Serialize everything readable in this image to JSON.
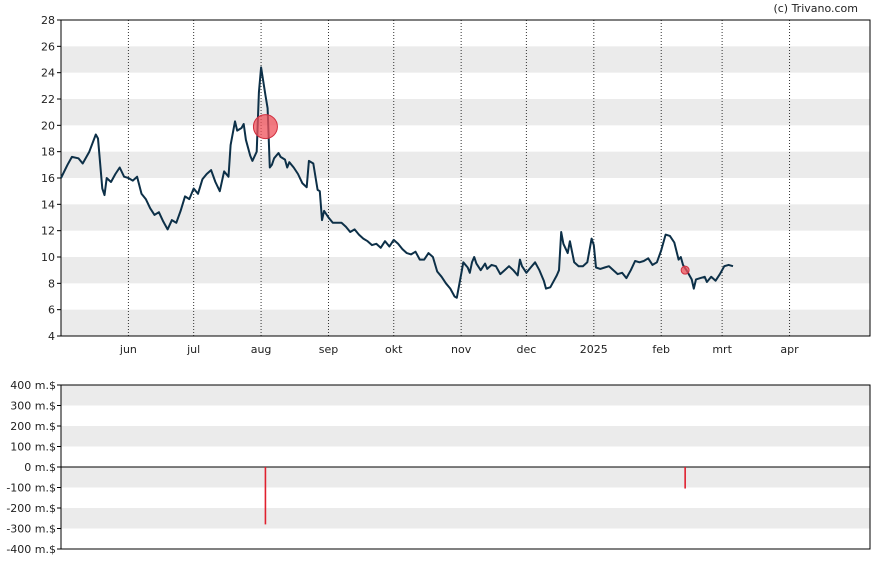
{
  "watermark": "(c) Trivano.com",
  "colors": {
    "band": "#ebebeb",
    "price_line": "#0d3048",
    "marker": "#f0505a",
    "bar": "#e0202e",
    "grid_dots": "#333333",
    "axis": "#000000"
  },
  "chart_data": [
    {
      "type": "line",
      "title": "",
      "xlabel": "",
      "ylabel": "",
      "ylim": [
        4,
        28
      ],
      "y_ticks": [
        "4",
        "6",
        "8",
        "10",
        "12",
        "14",
        "16",
        "18",
        "20",
        "22",
        "24",
        "26",
        "28"
      ],
      "x_ticks": [
        {
          "label": "jun",
          "d": 31
        },
        {
          "label": "jul",
          "d": 61
        },
        {
          "label": "aug",
          "d": 92
        },
        {
          "label": "sep",
          "d": 123
        },
        {
          "label": "okt",
          "d": 153
        },
        {
          "label": "nov",
          "d": 184
        },
        {
          "label": "dec",
          "d": 214
        },
        {
          "label": "2025",
          "d": 245
        },
        {
          "label": "feb",
          "d": 276
        },
        {
          "label": "mrt",
          "d": 304
        },
        {
          "label": "apr",
          "d": 335
        }
      ],
      "xlim": [
        0,
        372
      ],
      "band_stripes": true,
      "series": [
        {
          "points": [
            [
              0,
              16.0
            ],
            [
              3,
              17.0
            ],
            [
              5,
              17.6
            ],
            [
              8,
              17.5
            ],
            [
              10,
              17.1
            ],
            [
              13,
              18.0
            ],
            [
              16,
              19.3
            ],
            [
              17,
              19.0
            ],
            [
              19,
              15.2
            ],
            [
              20,
              14.7
            ],
            [
              21,
              16.0
            ],
            [
              23,
              15.7
            ],
            [
              25,
              16.3
            ],
            [
              27,
              16.8
            ],
            [
              29,
              16.1
            ],
            [
              31,
              16.0
            ],
            [
              33,
              15.8
            ],
            [
              35,
              16.1
            ],
            [
              37,
              14.8
            ],
            [
              39,
              14.4
            ],
            [
              41,
              13.7
            ],
            [
              43,
              13.2
            ],
            [
              45,
              13.4
            ],
            [
              47,
              12.7
            ],
            [
              49,
              12.1
            ],
            [
              51,
              12.8
            ],
            [
              53,
              12.6
            ],
            [
              55,
              13.5
            ],
            [
              57,
              14.6
            ],
            [
              59,
              14.4
            ],
            [
              61,
              15.2
            ],
            [
              63,
              14.8
            ],
            [
              65,
              15.9
            ],
            [
              67,
              16.3
            ],
            [
              69,
              16.6
            ],
            [
              71,
              15.7
            ],
            [
              73,
              15.0
            ],
            [
              75,
              16.5
            ],
            [
              77,
              16.1
            ],
            [
              78,
              18.5
            ],
            [
              80,
              20.3
            ],
            [
              81,
              19.6
            ],
            [
              83,
              19.8
            ],
            [
              84,
              20.1
            ],
            [
              85,
              18.9
            ],
            [
              87,
              17.7
            ],
            [
              88,
              17.3
            ],
            [
              90,
              18.0
            ],
            [
              91,
              22.5
            ],
            [
              92,
              24.4
            ],
            [
              94,
              22.3
            ],
            [
              95,
              21.3
            ],
            [
              96,
              16.8
            ],
            [
              97,
              17.0
            ],
            [
              98,
              17.5
            ],
            [
              100,
              17.9
            ],
            [
              101,
              17.6
            ],
            [
              103,
              17.4
            ],
            [
              104,
              16.8
            ],
            [
              105,
              17.2
            ],
            [
              107,
              16.8
            ],
            [
              109,
              16.3
            ],
            [
              111,
              15.6
            ],
            [
              113,
              15.3
            ],
            [
              114,
              17.3
            ],
            [
              116,
              17.1
            ],
            [
              118,
              15.1
            ],
            [
              119,
              15.0
            ],
            [
              120,
              12.8
            ],
            [
              121,
              13.5
            ],
            [
              123,
              13.0
            ],
            [
              125,
              12.6
            ],
            [
              127,
              12.6
            ],
            [
              129,
              12.6
            ],
            [
              131,
              12.3
            ],
            [
              133,
              11.9
            ],
            [
              135,
              12.1
            ],
            [
              137,
              11.7
            ],
            [
              139,
              11.4
            ],
            [
              141,
              11.2
            ],
            [
              143,
              10.9
            ],
            [
              145,
              11.0
            ],
            [
              147,
              10.7
            ],
            [
              149,
              11.2
            ],
            [
              151,
              10.8
            ],
            [
              153,
              11.3
            ],
            [
              155,
              11.0
            ],
            [
              157,
              10.6
            ],
            [
              159,
              10.3
            ],
            [
              161,
              10.2
            ],
            [
              163,
              10.4
            ],
            [
              165,
              9.8
            ],
            [
              167,
              9.8
            ],
            [
              169,
              10.3
            ],
            [
              171,
              10.0
            ],
            [
              173,
              8.9
            ],
            [
              175,
              8.5
            ],
            [
              177,
              8.0
            ],
            [
              179,
              7.6
            ],
            [
              181,
              7.0
            ],
            [
              182,
              6.9
            ],
            [
              184,
              8.7
            ],
            [
              185,
              9.6
            ],
            [
              187,
              9.2
            ],
            [
              188,
              8.8
            ],
            [
              189,
              9.6
            ],
            [
              190,
              10.0
            ],
            [
              191,
              9.5
            ],
            [
              193,
              9.0
            ],
            [
              195,
              9.5
            ],
            [
              196,
              9.1
            ],
            [
              198,
              9.4
            ],
            [
              200,
              9.3
            ],
            [
              202,
              8.7
            ],
            [
              204,
              9.0
            ],
            [
              206,
              9.3
            ],
            [
              208,
              9.0
            ],
            [
              210,
              8.6
            ],
            [
              211,
              9.8
            ],
            [
              212,
              9.3
            ],
            [
              214,
              8.8
            ],
            [
              216,
              9.2
            ],
            [
              218,
              9.6
            ],
            [
              220,
              9.0
            ],
            [
              222,
              8.2
            ],
            [
              223,
              7.6
            ],
            [
              225,
              7.7
            ],
            [
              228,
              8.6
            ],
            [
              229,
              9.0
            ],
            [
              230,
              11.9
            ],
            [
              231,
              11.0
            ],
            [
              233,
              10.3
            ],
            [
              234,
              11.2
            ],
            [
              236,
              9.6
            ],
            [
              238,
              9.3
            ],
            [
              240,
              9.3
            ],
            [
              242,
              9.6
            ],
            [
              244,
              11.4
            ],
            [
              245,
              10.9
            ],
            [
              246,
              9.2
            ],
            [
              248,
              9.1
            ],
            [
              250,
              9.2
            ],
            [
              252,
              9.3
            ],
            [
              254,
              9.0
            ],
            [
              256,
              8.7
            ],
            [
              258,
              8.8
            ],
            [
              260,
              8.4
            ],
            [
              262,
              9.0
            ],
            [
              264,
              9.7
            ],
            [
              266,
              9.6
            ],
            [
              268,
              9.7
            ],
            [
              270,
              9.9
            ],
            [
              272,
              9.4
            ],
            [
              274,
              9.6
            ],
            [
              276,
              10.5
            ],
            [
              278,
              11.7
            ],
            [
              280,
              11.6
            ],
            [
              282,
              11.1
            ],
            [
              284,
              9.8
            ],
            [
              285,
              10.0
            ],
            [
              286,
              9.4
            ],
            [
              288,
              8.9
            ],
            [
              290,
              8.3
            ],
            [
              291,
              7.6
            ],
            [
              292,
              8.3
            ],
            [
              294,
              8.4
            ],
            [
              296,
              8.5
            ],
            [
              297,
              8.1
            ],
            [
              299,
              8.5
            ],
            [
              301,
              8.2
            ],
            [
              303,
              8.7
            ],
            [
              305,
              9.3
            ],
            [
              307,
              9.4
            ],
            [
              309,
              9.3
            ]
          ]
        }
      ],
      "markers": [
        {
          "d": 94,
          "y": 19.9,
          "size": "large"
        },
        {
          "d": 287,
          "y": 9.0,
          "size": "small"
        }
      ]
    },
    {
      "type": "bar",
      "title": "",
      "ylim": [
        -400,
        400
      ],
      "y_ticks": [
        "400 m.$",
        "300 m.$",
        "200 m.$",
        "100 m.$",
        "0 m.$",
        "-100 m.$",
        "-200 m.$",
        "-300 m.$",
        "-400 m.$"
      ],
      "band_stripes": true,
      "values": [
        {
          "d": 94,
          "value": -280
        },
        {
          "d": 287,
          "value": -105
        }
      ]
    }
  ]
}
